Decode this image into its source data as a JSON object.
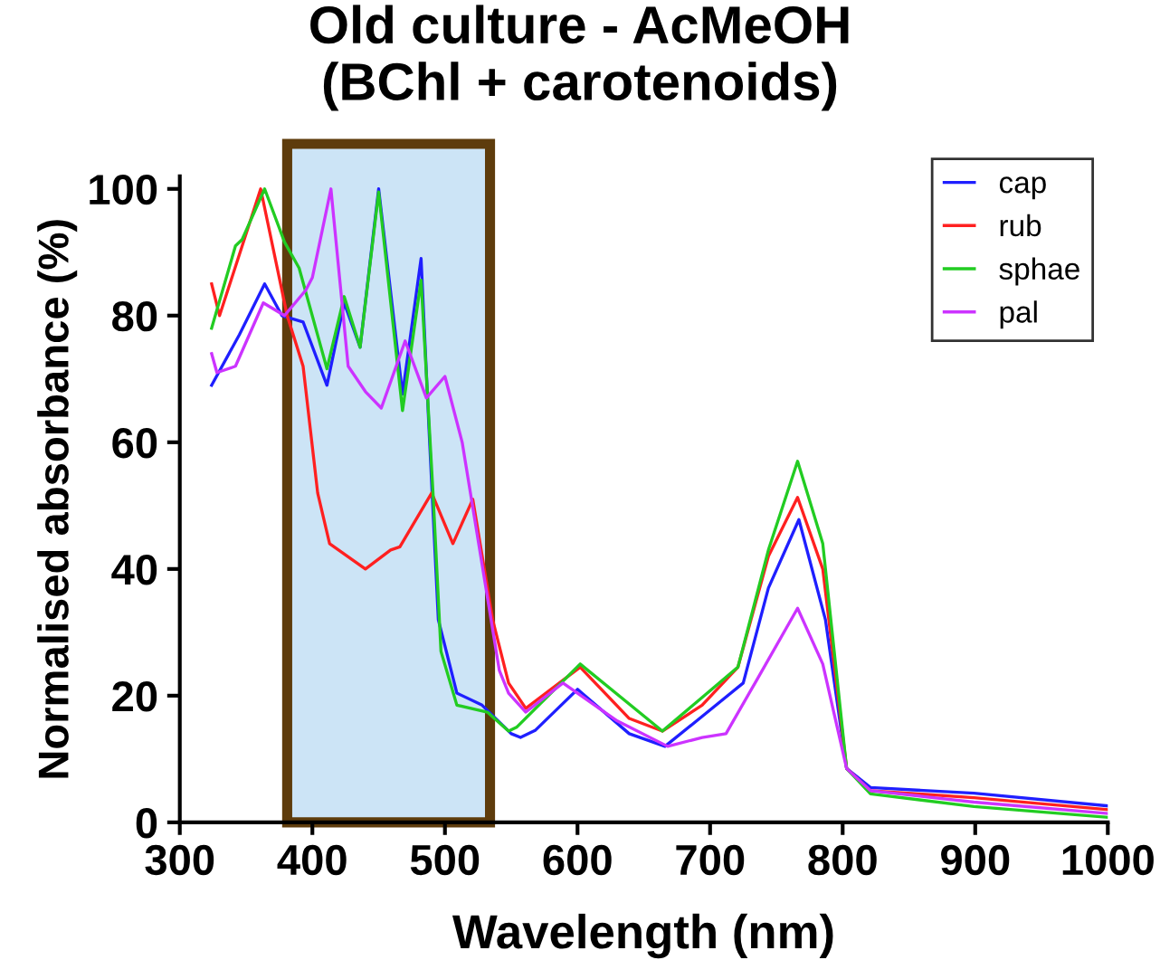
{
  "chart_data": {
    "type": "line",
    "title": "Old culture - AcMeOH\n(BChl + carotenoids)",
    "xlabel": "Wavelength (nm)",
    "ylabel": "Normalised absorbance (%)",
    "xlim": [
      300,
      1000
    ],
    "xticks": [
      300,
      400,
      500,
      600,
      700,
      800,
      900,
      1000
    ],
    "ylim": [
      0,
      102
    ],
    "yticks": [
      0,
      20,
      40,
      60,
      80,
      100
    ],
    "grid": false,
    "legend": "top right",
    "marker": "none",
    "line_style": "solid",
    "bands": [
      {
        "axis": "x",
        "from": 381,
        "to": 534,
        "color": "#cce4f6"
      }
    ],
    "series": [
      {
        "name": "cap",
        "color": "#1f1fff",
        "x": [
          324,
          345,
          364,
          377,
          393,
          411,
          424,
          436,
          450,
          468,
          482,
          488,
          495,
          509,
          528,
          550,
          557,
          568,
          600,
          639,
          666,
          698,
          725,
          744,
          767,
          787,
          803,
          821,
          899,
          1000
        ],
        "values": [
          69,
          77,
          85,
          80,
          79,
          69,
          82,
          75,
          100,
          67.6,
          89,
          62,
          32,
          20.4,
          18.5,
          14,
          13.4,
          14.5,
          21,
          14,
          12,
          17.4,
          22,
          37,
          47.8,
          32,
          8.5,
          5.5,
          4.6,
          2.6
        ]
      },
      {
        "name": "rub",
        "color": "#ff2020",
        "x": [
          324,
          330,
          361,
          381,
          393,
          404,
          413,
          440,
          459,
          466,
          490,
          506,
          521,
          536,
          548,
          561,
          602,
          639,
          664,
          694,
          721,
          744,
          766,
          785,
          803,
          821,
          899,
          1000
        ],
        "values": [
          85,
          80,
          100,
          80,
          72,
          52,
          44,
          40,
          43,
          43.5,
          52,
          44,
          51,
          32,
          22,
          18,
          24.5,
          16.4,
          14.4,
          18.5,
          24.5,
          42,
          51.3,
          40,
          8.5,
          5,
          3.9,
          2
        ]
      },
      {
        "name": "sphae",
        "color": "#22cc22",
        "x": [
          324,
          342,
          347,
          364,
          379,
          390,
          411,
          424,
          436,
          450,
          468,
          482,
          491,
          497,
          509,
          532,
          548,
          554,
          602,
          664,
          721,
          744,
          766,
          785,
          803,
          821,
          899,
          1000
        ],
        "values": [
          78,
          91,
          92,
          100,
          91.6,
          87.5,
          71.6,
          83,
          75,
          99.5,
          65,
          85.6,
          52,
          27,
          18.5,
          17.4,
          14.4,
          15,
          25,
          14.4,
          24.5,
          43,
          57,
          44,
          8.5,
          4.5,
          2.5,
          0.8
        ]
      },
      {
        "name": "pal",
        "color": "#cc33ff",
        "x": [
          324,
          328,
          342,
          363,
          379,
          395,
          400,
          414,
          427,
          440,
          452,
          470,
          486,
          500,
          513,
          527,
          541,
          548,
          561,
          589,
          630,
          668,
          694,
          712,
          735,
          766,
          785,
          803,
          821,
          899,
          1000
        ],
        "values": [
          74,
          71,
          72,
          82,
          80,
          84,
          86,
          100,
          72,
          68,
          65.4,
          76,
          67,
          70.4,
          60,
          42,
          24,
          20.4,
          17.4,
          22,
          16,
          12,
          13.4,
          14,
          22.4,
          33.8,
          25,
          8.5,
          5,
          3.2,
          1.4
        ]
      }
    ]
  }
}
